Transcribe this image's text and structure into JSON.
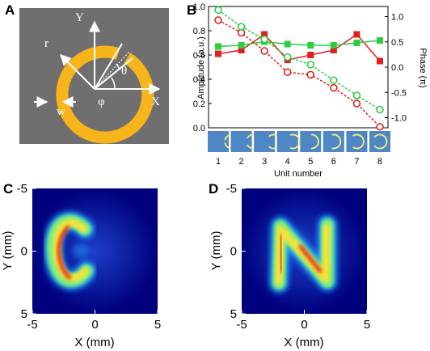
{
  "panels": {
    "a": {
      "letter": "A",
      "labels": {
        "y": "Y",
        "x": "X",
        "r": "r",
        "w": "w",
        "theta": "θ",
        "phi": "φ"
      },
      "colors": {
        "background": "#6f6f6f",
        "ring": "#f8b41b",
        "arrows": "#ffffff"
      }
    },
    "b": {
      "letter": "B",
      "xlabel": "Unit number",
      "ylabel_left": "Amplitude (a.u.)",
      "ylabel_right": "Phase (π)",
      "unit_strip_color": "#4f86c6"
    },
    "c": {
      "letter": "C",
      "xlabel": "X (mm)",
      "ylabel": "Y (mm)",
      "shape_letter": "C"
    },
    "d": {
      "letter": "D",
      "xlabel": "X (mm)",
      "ylabel": "Y (mm)",
      "shape_letter": "N"
    }
  },
  "chart_data": [
    {
      "panel": "B",
      "type": "line",
      "x": [
        1,
        2,
        3,
        4,
        5,
        6,
        7,
        8
      ],
      "xlabel": "Unit number",
      "ylabel": "Amplitude (a.u.)",
      "ylim": [
        0.0,
        1.0
      ],
      "yticks": [
        "0.0",
        "0.2",
        "0.4",
        "0.6",
        "0.8",
        "1.0"
      ],
      "y2label": "Phase (π)",
      "y2lim": [
        -1.2,
        1.2
      ],
      "y2ticks": [
        "1.0",
        "0.5",
        "0.0",
        "-0.5",
        "-1.0"
      ],
      "series": [
        {
          "axis": "left",
          "color": "#e02020",
          "marker": "square",
          "filled": true,
          "dashed": false,
          "values": [
            0.61,
            0.64,
            0.77,
            0.56,
            0.6,
            0.64,
            0.77,
            0.55
          ]
        },
        {
          "axis": "left",
          "color": "#2ecc40",
          "marker": "square",
          "filled": true,
          "dashed": false,
          "values": [
            0.67,
            0.68,
            0.71,
            0.69,
            0.68,
            0.68,
            0.7,
            0.72
          ]
        },
        {
          "axis": "right",
          "color": "#e02020",
          "marker": "circle",
          "filled": false,
          "dashed": true,
          "values": [
            0.93,
            0.68,
            0.32,
            -0.1,
            -0.15,
            -0.41,
            -0.72,
            -1.18
          ]
        },
        {
          "axis": "right",
          "color": "#2ecc40",
          "marker": "circle",
          "filled": false,
          "dashed": true,
          "values": [
            1.13,
            0.8,
            0.55,
            0.2,
            0.05,
            -0.26,
            -0.56,
            -0.84
          ]
        }
      ]
    },
    {
      "panel": "C",
      "type": "heatmap",
      "xlabel": "X (mm)",
      "ylabel": "Y (mm)",
      "xlim": [
        -5,
        5
      ],
      "ylim": [
        -5,
        5
      ],
      "xticks": [
        "-5",
        "0",
        "5"
      ],
      "yticks": [
        "-5",
        "0",
        "5"
      ],
      "colormap": "jet",
      "shape_letter": "C"
    },
    {
      "panel": "D",
      "type": "heatmap",
      "xlabel": "X (mm)",
      "ylabel": "Y (mm)",
      "xlim": [
        -5,
        5
      ],
      "ylim": [
        -5,
        5
      ],
      "xticks": [
        "-5",
        "0",
        "5"
      ],
      "yticks": [
        "-5",
        "0",
        "5"
      ],
      "colormap": "jet",
      "shape_letter": "N"
    }
  ]
}
